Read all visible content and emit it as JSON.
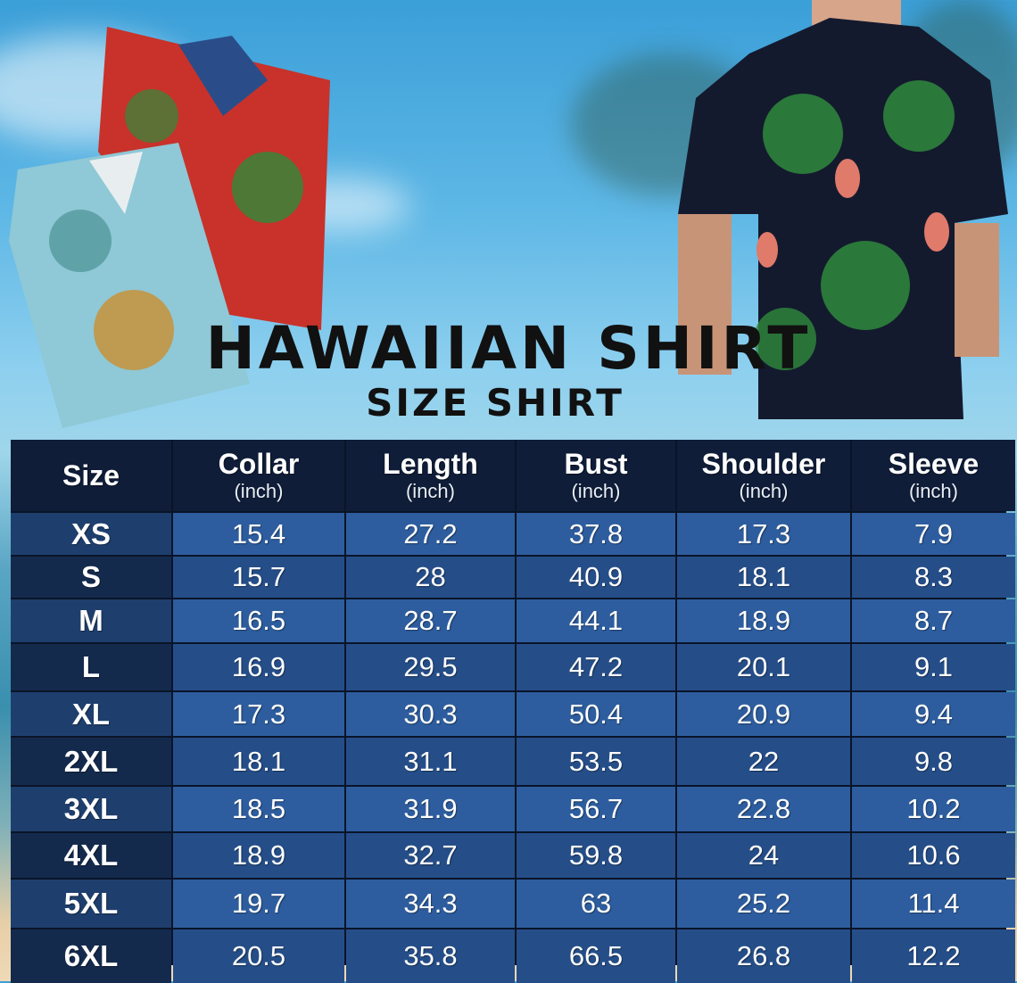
{
  "title": "HAWAIIAN SHIRT",
  "subtitle": "SIZE SHIRT",
  "colors": {
    "header": "#0f1d38",
    "row_light": "#2d5d9e",
    "row_dark": "#254e89",
    "size_col": "#142a4d"
  },
  "table": {
    "columns": [
      {
        "label": "Size",
        "unit": ""
      },
      {
        "label": "Collar",
        "unit": "(inch)"
      },
      {
        "label": "Length",
        "unit": "(inch)"
      },
      {
        "label": "Bust",
        "unit": "(inch)"
      },
      {
        "label": "Shoulder",
        "unit": "(inch)"
      },
      {
        "label": "Sleeve",
        "unit": "(inch)"
      }
    ],
    "rows": [
      [
        "XS",
        "15.4",
        "27.2",
        "37.8",
        "17.3",
        "7.9"
      ],
      [
        "S",
        "15.7",
        "28",
        "40.9",
        "18.1",
        "8.3"
      ],
      [
        "M",
        "16.5",
        "28.7",
        "44.1",
        "18.9",
        "8.7"
      ],
      [
        "L",
        "16.9",
        "29.5",
        "47.2",
        "20.1",
        "9.1"
      ],
      [
        "XL",
        "17.3",
        "30.3",
        "50.4",
        "20.9",
        "9.4"
      ],
      [
        "2XL",
        "18.1",
        "31.1",
        "53.5",
        "22",
        "9.8"
      ],
      [
        "3XL",
        "18.5",
        "31.9",
        "56.7",
        "22.8",
        "10.2"
      ],
      [
        "4XL",
        "18.9",
        "32.7",
        "59.8",
        "24",
        "10.6"
      ],
      [
        "5XL",
        "19.7",
        "34.3",
        "63",
        "25.2",
        "11.4"
      ],
      [
        "6XL",
        "20.5",
        "35.8",
        "66.5",
        "26.8",
        "12.2"
      ]
    ]
  }
}
